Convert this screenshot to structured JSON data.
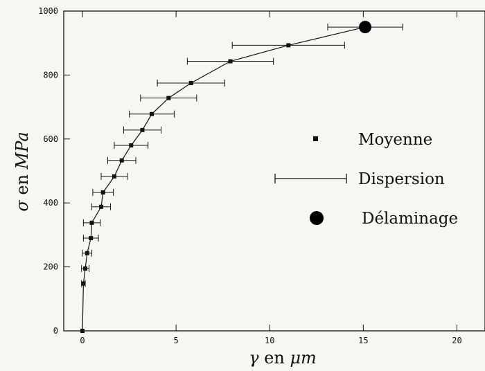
{
  "chart_data": {
    "type": "line",
    "title": "",
    "xlabel": "γ en μm",
    "xlabel_symbol": "γ",
    "xlabel_mid": " en ",
    "xlabel_unit": "μm",
    "ylabel": "σ en MPa",
    "ylabel_symbol": "σ",
    "ylabel_mid": " en ",
    "ylabel_unit": "MPa",
    "xlim": [
      -1,
      21.5
    ],
    "ylim": [
      0,
      1000
    ],
    "xticks": [
      0,
      5,
      10,
      15,
      20
    ],
    "yticks": [
      0,
      200,
      400,
      600,
      800,
      1000
    ],
    "grid": false,
    "legend_position": "right",
    "legend": [
      {
        "label": "Moyenne",
        "marker": "small-square"
      },
      {
        "label": "Dispersion",
        "marker": "errorbar"
      },
      {
        "label": "Délaminage",
        "marker": "large-circle"
      }
    ],
    "series": [
      {
        "name": "Moyenne",
        "points": [
          {
            "x": 0.0,
            "y": 0,
            "err": 0
          },
          {
            "x": 0.05,
            "y": 148,
            "err": 0.1
          },
          {
            "x": 0.15,
            "y": 195,
            "err": 0.2
          },
          {
            "x": 0.25,
            "y": 243,
            "err": 0.25
          },
          {
            "x": 0.45,
            "y": 290,
            "err": 0.4
          },
          {
            "x": 0.5,
            "y": 338,
            "err": 0.45
          },
          {
            "x": 1.0,
            "y": 388,
            "err": 0.5
          },
          {
            "x": 1.1,
            "y": 433,
            "err": 0.55
          },
          {
            "x": 1.7,
            "y": 483,
            "err": 0.7
          },
          {
            "x": 2.1,
            "y": 533,
            "err": 0.75
          },
          {
            "x": 2.6,
            "y": 580,
            "err": 0.9
          },
          {
            "x": 3.2,
            "y": 628,
            "err": 1.0
          },
          {
            "x": 3.7,
            "y": 678,
            "err": 1.2
          },
          {
            "x": 4.6,
            "y": 728,
            "err": 1.5
          },
          {
            "x": 5.8,
            "y": 775,
            "err": 1.8
          },
          {
            "x": 7.9,
            "y": 843,
            "err": 2.3
          },
          {
            "x": 11.0,
            "y": 893,
            "err": 3.0
          }
        ]
      },
      {
        "name": "Délaminage",
        "points": [
          {
            "x": 15.1,
            "y": 950,
            "err": 2.0
          }
        ]
      }
    ]
  }
}
